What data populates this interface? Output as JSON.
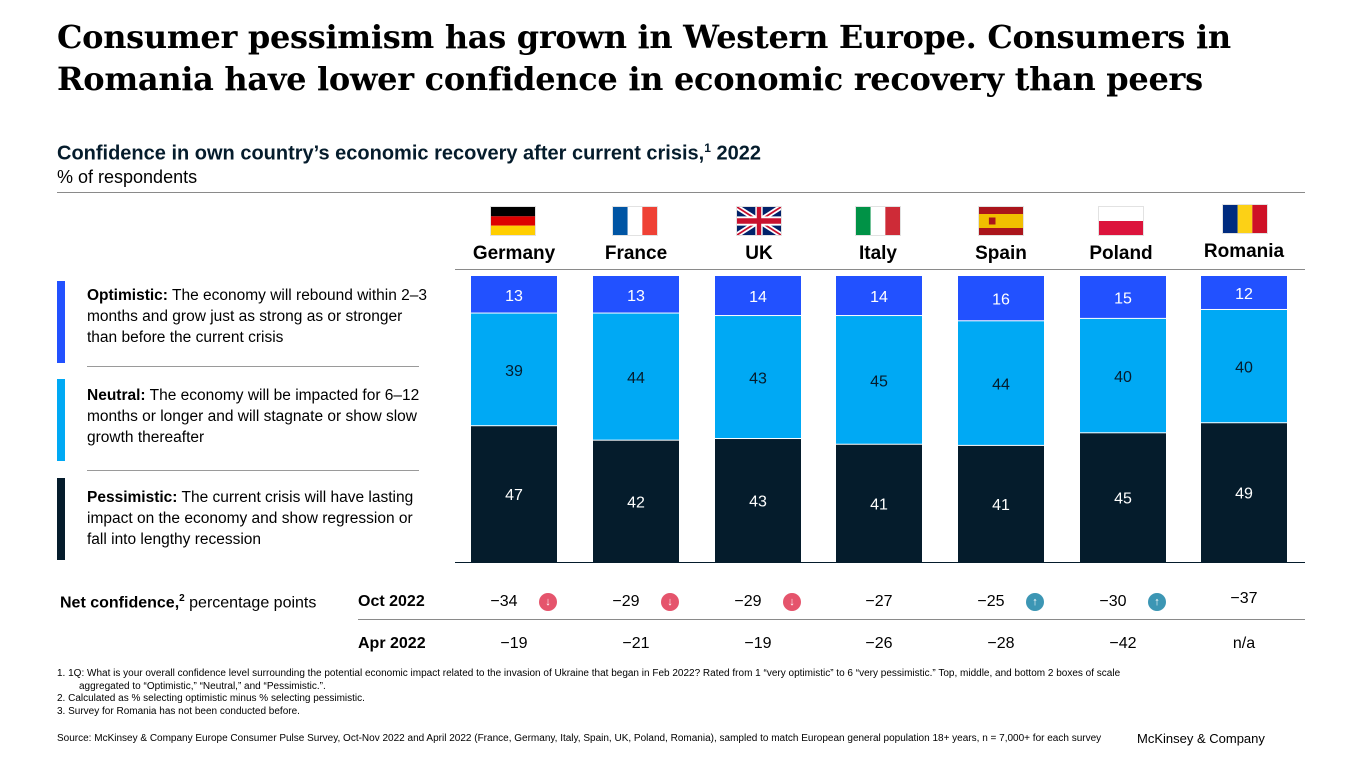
{
  "headline": "Consumer pessimism has grown in Western Europe. Consumers in Romania have lower confidence in economic recovery than peers",
  "subtitle": {
    "text": "Confidence in own country’s economic recovery after current crisis,",
    "footnote_mark": "1",
    "year": "2022"
  },
  "units": "% of respondents",
  "legend": {
    "optimistic": {
      "term": "Optimistic:",
      "text": "The economy will rebound within 2–3 months and grow just as strong as or stronger than before the current crisis",
      "color": "#2251ff"
    },
    "neutral": {
      "term": "Neutral:",
      "text": "The economy will be impacted for 6–12 months or longer and will stagnate or show slow growth thereafter",
      "color": "#00a9f4"
    },
    "pessimistic": {
      "term": "Pessimistic:",
      "text": "The current crisis will have lasting impact on the economy and show regression or fall into lengthy recession",
      "color": "#051c2c"
    }
  },
  "chart_data": {
    "type": "bar",
    "stacked": true,
    "normalized_percent": true,
    "categories": [
      "Germany",
      "France",
      "UK",
      "Italy",
      "Spain",
      "Poland",
      "Romania"
    ],
    "series": [
      {
        "name": "Optimistic",
        "color": "#2251ff",
        "values": [
          13,
          13,
          14,
          14,
          16,
          15,
          12
        ]
      },
      {
        "name": "Neutral",
        "color": "#00a9f4",
        "values": [
          39,
          44,
          43,
          45,
          44,
          40,
          40
        ]
      },
      {
        "name": "Pessimistic",
        "color": "#051c2c",
        "values": [
          47,
          42,
          43,
          41,
          41,
          45,
          49
        ]
      }
    ],
    "ylim": [
      0,
      100
    ],
    "legend_position": "left"
  },
  "net_confidence": {
    "label_term": "Net confidence,",
    "label_mark": "2",
    "label_rest": "percentage points",
    "rows": [
      {
        "label": "Oct 2022",
        "values": [
          "−34",
          "−29",
          "−29",
          "−27",
          "−25",
          "−30",
          "−37"
        ],
        "trend": [
          "down",
          "down",
          "down",
          "",
          "up",
          "up",
          ""
        ]
      },
      {
        "label": "Apr 2022",
        "values": [
          "−19",
          "−21",
          "−19",
          "−26",
          "−28",
          "−42",
          "n/a"
        ]
      }
    ],
    "trend_colors": {
      "down": "#e5546c",
      "up": "#3c96b4"
    },
    "trend_icons": {
      "down": "arrow-down-icon",
      "up": "arrow-up-icon"
    }
  },
  "footnotes": [
    "1. 1Q: What is your overall confidence level surrounding the potential economic impact related to the invasion of Ukraine that began in Feb 2022? Rated from 1 “very optimistic” to 6 “very pessimistic.” Top, middle, and bottom 2 boxes of scale",
    "aggregated to “Optimistic,” “Neutral,” and “Pessimistic.”.",
    "2. Calculated as % selecting optimistic minus % selecting pessimistic.",
    "3. Survey for Romania has not been conducted before."
  ],
  "source": "Source: McKinsey & Company Europe Consumer Pulse Survey, Oct-Nov 2022 and April 2022 (France, Germany, Italy, Spain, UK, Poland, Romania), sampled to match European general population 18+ years, n = 7,000+ for each survey",
  "brand": "McKinsey & Company"
}
